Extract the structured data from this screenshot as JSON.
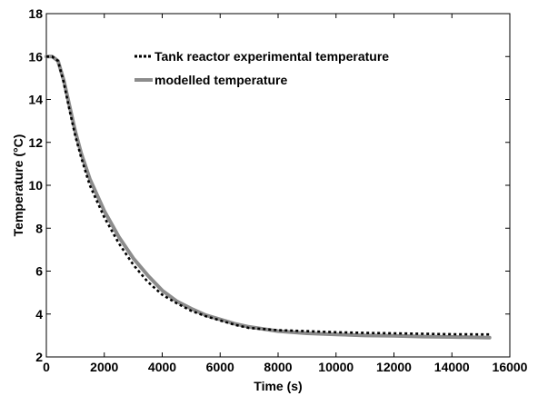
{
  "chart_data": {
    "type": "line",
    "title": "",
    "xlabel": "Time (s)",
    "ylabel": "Temperature (°C)",
    "xlim": [
      0,
      16000
    ],
    "ylim": [
      2,
      18
    ],
    "xticks": [
      0,
      2000,
      4000,
      6000,
      8000,
      10000,
      12000,
      14000,
      16000
    ],
    "yticks": [
      2,
      4,
      6,
      8,
      10,
      12,
      14,
      16,
      18
    ],
    "grid": false,
    "legend_position": "top-right",
    "series": [
      {
        "name": "Tank reactor experimental temperature",
        "style": "dotted",
        "color": "#000000",
        "x": [
          0,
          200,
          400,
          600,
          800,
          1000,
          1200,
          1500,
          2000,
          2500,
          3000,
          3500,
          4000,
          4500,
          5000,
          5500,
          6000,
          6500,
          7000,
          8000,
          9000,
          10000,
          11000,
          12000,
          13000,
          14000,
          15300
        ],
        "y": [
          16.0,
          16.0,
          15.8,
          14.8,
          13.5,
          12.3,
          11.3,
          10.0,
          8.5,
          7.3,
          6.3,
          5.5,
          4.9,
          4.5,
          4.15,
          3.9,
          3.7,
          3.5,
          3.35,
          3.25,
          3.2,
          3.15,
          3.12,
          3.1,
          3.08,
          3.06,
          3.05
        ]
      },
      {
        "name": "modelled temperature",
        "style": "solid",
        "color": "#8c8c8c",
        "x": [
          0,
          200,
          400,
          600,
          800,
          1000,
          1200,
          1500,
          2000,
          2500,
          3000,
          3500,
          4000,
          4500,
          5000,
          5500,
          6000,
          6500,
          7000,
          8000,
          9000,
          10000,
          11000,
          12000,
          13000,
          14000,
          15300
        ],
        "y": [
          16.0,
          16.0,
          15.8,
          14.9,
          13.7,
          12.5,
          11.5,
          10.3,
          8.8,
          7.6,
          6.6,
          5.8,
          5.1,
          4.6,
          4.25,
          3.95,
          3.75,
          3.55,
          3.4,
          3.2,
          3.1,
          3.05,
          3.0,
          2.98,
          2.95,
          2.93,
          2.9
        ]
      }
    ]
  }
}
